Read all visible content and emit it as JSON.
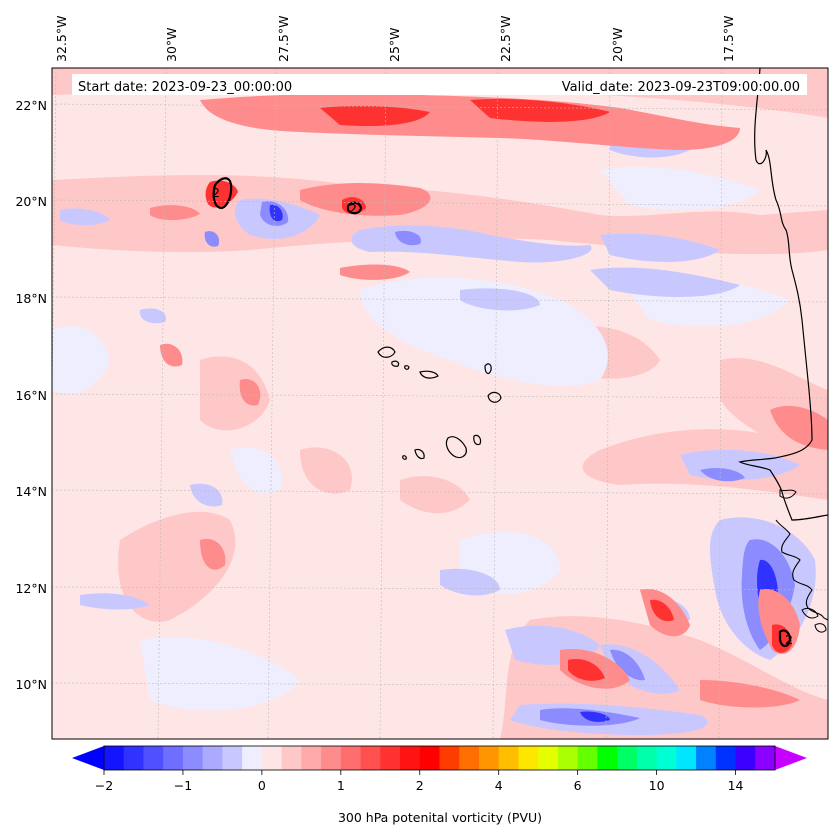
{
  "map": {
    "type": "filled-contour-map",
    "variable": "300 hPa potential vorticity",
    "start_label": "Start date: 2023-09-23_00:00:00",
    "valid_label": "Valid_date: 2023-09-23T09:00:00.00",
    "lon_labels": [
      "32.5°W",
      "30°W",
      "27.5°W",
      "25°W",
      "22.5°W",
      "20°W",
      "17.5°W"
    ],
    "lat_labels": [
      "22°N",
      "20°N",
      "18°N",
      "16°N",
      "14°N",
      "12°N",
      "10°N"
    ],
    "contour_label": "2",
    "colors": {
      "deep_blue": "#0000ff",
      "mid_blue": "#5a5aff",
      "light_blue": "#c8c8ff",
      "faint_blue": "#eeeeff",
      "faint_red": "#ffe6e6",
      "light_red": "#ffb4b4",
      "mid_red": "#ff6464",
      "strong_red": "#ff1e1e",
      "coast": "#000000"
    }
  },
  "colorbar": {
    "label": "300 hPa potenital vorticity (PVU)",
    "tick_labels": [
      "−2",
      "−1",
      "0",
      "1",
      "2",
      "4",
      "6",
      "10",
      "14"
    ],
    "colors": [
      "#1414ff",
      "#3232ff",
      "#5050ff",
      "#6e6eff",
      "#8c8cff",
      "#aaaaff",
      "#c8c8ff",
      "#eeeeff",
      "#ffe6e6",
      "#ffc8c8",
      "#ffaaaa",
      "#ff8c8c",
      "#ff6e6e",
      "#ff5050",
      "#ff3232",
      "#ff1414",
      "#ff0000",
      "#ff3c00",
      "#ff6e00",
      "#ff9600",
      "#ffbe00",
      "#ffe600",
      "#e6ff00",
      "#aaff00",
      "#64ff00",
      "#00ff00",
      "#00ff64",
      "#00ffaa",
      "#00ffd2",
      "#00e6ff",
      "#0082ff",
      "#0032ff",
      "#3c00ff",
      "#8c00ff"
    ],
    "under_color": "#0000ff",
    "over_color": "#c800ff"
  }
}
